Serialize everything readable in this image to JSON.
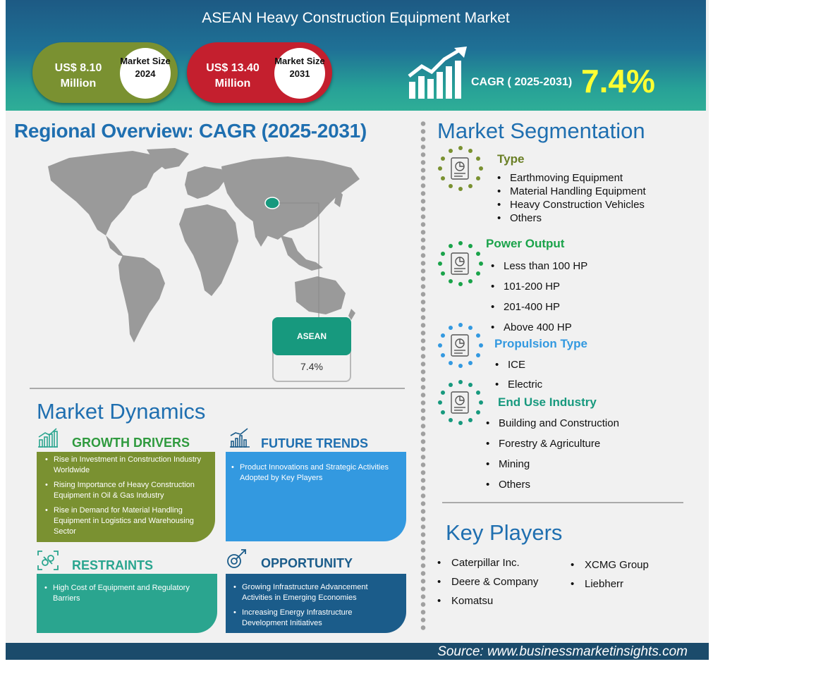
{
  "header": {
    "title": "ASEAN Heavy Construction Equipment Market",
    "market_2024": {
      "value": "US$ 8.10 Million",
      "label": "Market Size 2024"
    },
    "market_2031": {
      "value": "US$ 13.40 Million",
      "label": "Market Size 2031"
    },
    "cagr_label": "CAGR ( 2025-2031)",
    "cagr_value": "7.4%"
  },
  "regional": {
    "title": "Regional Overview: CAGR (2025-2031)",
    "region": "ASEAN",
    "region_cagr": "7.4%"
  },
  "dynamics": {
    "title": "Market Dynamics",
    "growth_drivers": {
      "title": "GROWTH DRIVERS",
      "items": [
        "Rise in Investment in Construction Industry Worldwide",
        "Rising Importance of Heavy Construction Equipment in Oil & Gas Industry",
        "Rise in Demand for Material Handling Equipment in Logistics and Warehousing Sector"
      ]
    },
    "future_trends": {
      "title": "FUTURE TRENDS",
      "items": [
        "Product Innovations and Strategic Activities Adopted by Key Players"
      ]
    },
    "restraints": {
      "title": "RESTRAINTS",
      "items": [
        "High Cost of Equipment and Regulatory Barriers"
      ]
    },
    "opportunity": {
      "title": "OPPORTUNITY",
      "items": [
        "Growing Infrastructure Advancement Activities in Emerging Economies",
        "Increasing Energy Infrastructure Development Initiatives"
      ]
    }
  },
  "segmentation": {
    "title": "Market Segmentation",
    "type": {
      "title": "Type",
      "items": [
        "Earthmoving Equipment",
        "Material Handling Equipment",
        "Heavy Construction Vehicles",
        "Others"
      ]
    },
    "power": {
      "title": "Power Output",
      "items": [
        "Less than 100 HP",
        "101-200 HP",
        "201-400 HP",
        "Above 400 HP"
      ]
    },
    "propulsion": {
      "title": "Propulsion Type",
      "items": [
        "ICE",
        "Electric"
      ]
    },
    "end_use": {
      "title": "End Use Industry",
      "items": [
        "Building and Construction",
        "Forestry & Agriculture",
        "Mining",
        "Others"
      ]
    }
  },
  "key_players": {
    "title": "Key Players",
    "col1": [
      "Caterpillar Inc.",
      "Deere & Company",
      "Komatsu"
    ],
    "col2": [
      "XCMG Group",
      "Liebherr"
    ]
  },
  "footer": {
    "source": "Source: www.businessmarketinsights.com"
  },
  "colors": {
    "green": "#7a9131",
    "red": "#c41f2e",
    "blue_title": "#1f6fb0",
    "teal": "#2aa58f",
    "light_blue": "#3399e0",
    "navy": "#1b5c8a",
    "yellow": "#ffff33"
  }
}
